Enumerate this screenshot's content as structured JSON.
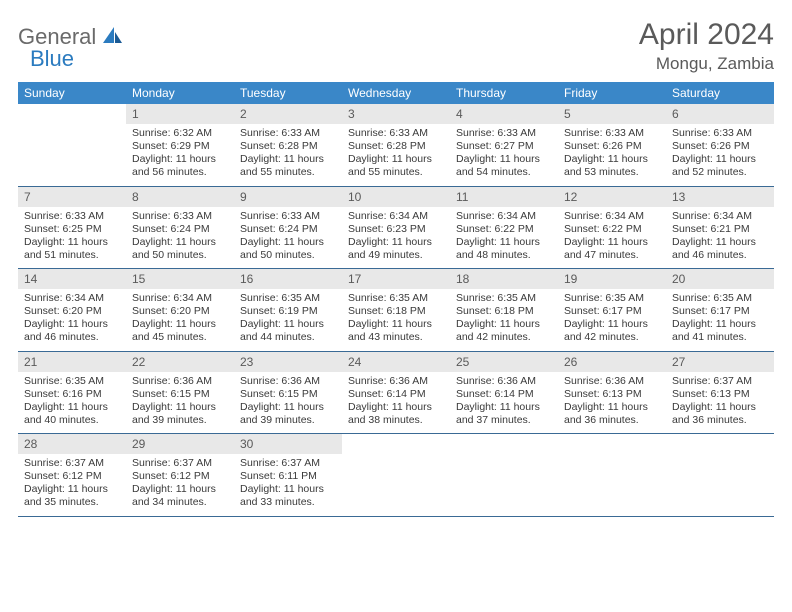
{
  "brand": {
    "part1": "General",
    "part2": "Blue"
  },
  "title": "April 2024",
  "location": "Mongu, Zambia",
  "colors": {
    "header_bg": "#3a87c8",
    "header_text": "#ffffff",
    "daynum_bg": "#e8e8e8",
    "daynum_text": "#5a5a5a",
    "body_text": "#3a3a3a",
    "divider": "#3a6a95",
    "logo_gray": "#6a6a6a",
    "logo_blue": "#2b7bbf"
  },
  "dow": [
    "Sunday",
    "Monday",
    "Tuesday",
    "Wednesday",
    "Thursday",
    "Friday",
    "Saturday"
  ],
  "weeks": [
    [
      null,
      {
        "n": "1",
        "sr": "6:32 AM",
        "ss": "6:29 PM",
        "dl": "11 hours and 56 minutes."
      },
      {
        "n": "2",
        "sr": "6:33 AM",
        "ss": "6:28 PM",
        "dl": "11 hours and 55 minutes."
      },
      {
        "n": "3",
        "sr": "6:33 AM",
        "ss": "6:28 PM",
        "dl": "11 hours and 55 minutes."
      },
      {
        "n": "4",
        "sr": "6:33 AM",
        "ss": "6:27 PM",
        "dl": "11 hours and 54 minutes."
      },
      {
        "n": "5",
        "sr": "6:33 AM",
        "ss": "6:26 PM",
        "dl": "11 hours and 53 minutes."
      },
      {
        "n": "6",
        "sr": "6:33 AM",
        "ss": "6:26 PM",
        "dl": "11 hours and 52 minutes."
      }
    ],
    [
      {
        "n": "7",
        "sr": "6:33 AM",
        "ss": "6:25 PM",
        "dl": "11 hours and 51 minutes."
      },
      {
        "n": "8",
        "sr": "6:33 AM",
        "ss": "6:24 PM",
        "dl": "11 hours and 50 minutes."
      },
      {
        "n": "9",
        "sr": "6:33 AM",
        "ss": "6:24 PM",
        "dl": "11 hours and 50 minutes."
      },
      {
        "n": "10",
        "sr": "6:34 AM",
        "ss": "6:23 PM",
        "dl": "11 hours and 49 minutes."
      },
      {
        "n": "11",
        "sr": "6:34 AM",
        "ss": "6:22 PM",
        "dl": "11 hours and 48 minutes."
      },
      {
        "n": "12",
        "sr": "6:34 AM",
        "ss": "6:22 PM",
        "dl": "11 hours and 47 minutes."
      },
      {
        "n": "13",
        "sr": "6:34 AM",
        "ss": "6:21 PM",
        "dl": "11 hours and 46 minutes."
      }
    ],
    [
      {
        "n": "14",
        "sr": "6:34 AM",
        "ss": "6:20 PM",
        "dl": "11 hours and 46 minutes."
      },
      {
        "n": "15",
        "sr": "6:34 AM",
        "ss": "6:20 PM",
        "dl": "11 hours and 45 minutes."
      },
      {
        "n": "16",
        "sr": "6:35 AM",
        "ss": "6:19 PM",
        "dl": "11 hours and 44 minutes."
      },
      {
        "n": "17",
        "sr": "6:35 AM",
        "ss": "6:18 PM",
        "dl": "11 hours and 43 minutes."
      },
      {
        "n": "18",
        "sr": "6:35 AM",
        "ss": "6:18 PM",
        "dl": "11 hours and 42 minutes."
      },
      {
        "n": "19",
        "sr": "6:35 AM",
        "ss": "6:17 PM",
        "dl": "11 hours and 42 minutes."
      },
      {
        "n": "20",
        "sr": "6:35 AM",
        "ss": "6:17 PM",
        "dl": "11 hours and 41 minutes."
      }
    ],
    [
      {
        "n": "21",
        "sr": "6:35 AM",
        "ss": "6:16 PM",
        "dl": "11 hours and 40 minutes."
      },
      {
        "n": "22",
        "sr": "6:36 AM",
        "ss": "6:15 PM",
        "dl": "11 hours and 39 minutes."
      },
      {
        "n": "23",
        "sr": "6:36 AM",
        "ss": "6:15 PM",
        "dl": "11 hours and 39 minutes."
      },
      {
        "n": "24",
        "sr": "6:36 AM",
        "ss": "6:14 PM",
        "dl": "11 hours and 38 minutes."
      },
      {
        "n": "25",
        "sr": "6:36 AM",
        "ss": "6:14 PM",
        "dl": "11 hours and 37 minutes."
      },
      {
        "n": "26",
        "sr": "6:36 AM",
        "ss": "6:13 PM",
        "dl": "11 hours and 36 minutes."
      },
      {
        "n": "27",
        "sr": "6:37 AM",
        "ss": "6:13 PM",
        "dl": "11 hours and 36 minutes."
      }
    ],
    [
      {
        "n": "28",
        "sr": "6:37 AM",
        "ss": "6:12 PM",
        "dl": "11 hours and 35 minutes."
      },
      {
        "n": "29",
        "sr": "6:37 AM",
        "ss": "6:12 PM",
        "dl": "11 hours and 34 minutes."
      },
      {
        "n": "30",
        "sr": "6:37 AM",
        "ss": "6:11 PM",
        "dl": "11 hours and 33 minutes."
      },
      null,
      null,
      null,
      null
    ]
  ],
  "labels": {
    "sunrise": "Sunrise:",
    "sunset": "Sunset:",
    "daylight": "Daylight:"
  }
}
